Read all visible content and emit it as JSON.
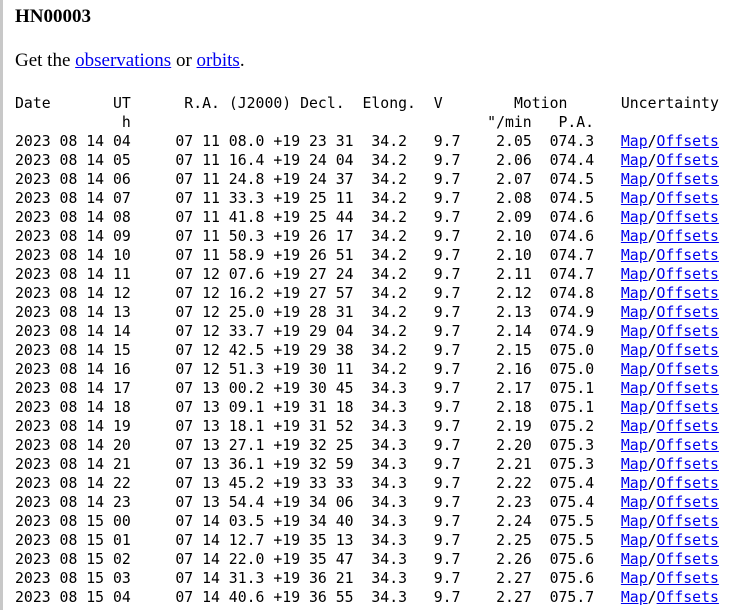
{
  "title": "HN00003",
  "intro": {
    "prefix": "Get the ",
    "link1": "observations",
    "middle": " or ",
    "link2": "orbits",
    "suffix": "."
  },
  "table": {
    "headers1": {
      "date": "Date",
      "ut": "UT",
      "radec": "R.A. (J2000) Decl.",
      "elong": "Elong.",
      "v": "V",
      "motion": "Motion",
      "uncertainty": "Uncertainty"
    },
    "headers2": {
      "ut_unit": "h",
      "rate": "\"/min",
      "pa": "P.A."
    },
    "link_map": "Map",
    "link_sep": "/",
    "link_offsets": "Offsets",
    "rows": [
      [
        "2023 08 14 04",
        "07 11 08.0",
        "+19 23 31",
        "34.2",
        "9.7",
        "2.05",
        "074.3"
      ],
      [
        "2023 08 14 05",
        "07 11 16.4",
        "+19 24 04",
        "34.2",
        "9.7",
        "2.06",
        "074.4"
      ],
      [
        "2023 08 14 06",
        "07 11 24.8",
        "+19 24 37",
        "34.2",
        "9.7",
        "2.07",
        "074.5"
      ],
      [
        "2023 08 14 07",
        "07 11 33.3",
        "+19 25 11",
        "34.2",
        "9.7",
        "2.08",
        "074.5"
      ],
      [
        "2023 08 14 08",
        "07 11 41.8",
        "+19 25 44",
        "34.2",
        "9.7",
        "2.09",
        "074.6"
      ],
      [
        "2023 08 14 09",
        "07 11 50.3",
        "+19 26 17",
        "34.2",
        "9.7",
        "2.10",
        "074.6"
      ],
      [
        "2023 08 14 10",
        "07 11 58.9",
        "+19 26 51",
        "34.2",
        "9.7",
        "2.10",
        "074.7"
      ],
      [
        "2023 08 14 11",
        "07 12 07.6",
        "+19 27 24",
        "34.2",
        "9.7",
        "2.11",
        "074.7"
      ],
      [
        "2023 08 14 12",
        "07 12 16.2",
        "+19 27 57",
        "34.2",
        "9.7",
        "2.12",
        "074.8"
      ],
      [
        "2023 08 14 13",
        "07 12 25.0",
        "+19 28 31",
        "34.2",
        "9.7",
        "2.13",
        "074.9"
      ],
      [
        "2023 08 14 14",
        "07 12 33.7",
        "+19 29 04",
        "34.2",
        "9.7",
        "2.14",
        "074.9"
      ],
      [
        "2023 08 14 15",
        "07 12 42.5",
        "+19 29 38",
        "34.2",
        "9.7",
        "2.15",
        "075.0"
      ],
      [
        "2023 08 14 16",
        "07 12 51.3",
        "+19 30 11",
        "34.2",
        "9.7",
        "2.16",
        "075.0"
      ],
      [
        "2023 08 14 17",
        "07 13 00.2",
        "+19 30 45",
        "34.3",
        "9.7",
        "2.17",
        "075.1"
      ],
      [
        "2023 08 14 18",
        "07 13 09.1",
        "+19 31 18",
        "34.3",
        "9.7",
        "2.18",
        "075.1"
      ],
      [
        "2023 08 14 19",
        "07 13 18.1",
        "+19 31 52",
        "34.3",
        "9.7",
        "2.19",
        "075.2"
      ],
      [
        "2023 08 14 20",
        "07 13 27.1",
        "+19 32 25",
        "34.3",
        "9.7",
        "2.20",
        "075.3"
      ],
      [
        "2023 08 14 21",
        "07 13 36.1",
        "+19 32 59",
        "34.3",
        "9.7",
        "2.21",
        "075.3"
      ],
      [
        "2023 08 14 22",
        "07 13 45.2",
        "+19 33 33",
        "34.3",
        "9.7",
        "2.22",
        "075.4"
      ],
      [
        "2023 08 14 23",
        "07 13 54.4",
        "+19 34 06",
        "34.3",
        "9.7",
        "2.23",
        "075.4"
      ],
      [
        "2023 08 15 00",
        "07 14 03.5",
        "+19 34 40",
        "34.3",
        "9.7",
        "2.24",
        "075.5"
      ],
      [
        "2023 08 15 01",
        "07 14 12.7",
        "+19 35 13",
        "34.3",
        "9.7",
        "2.25",
        "075.5"
      ],
      [
        "2023 08 15 02",
        "07 14 22.0",
        "+19 35 47",
        "34.3",
        "9.7",
        "2.26",
        "075.6"
      ],
      [
        "2023 08 15 03",
        "07 14 31.3",
        "+19 36 21",
        "34.3",
        "9.7",
        "2.27",
        "075.6"
      ],
      [
        "2023 08 15 04",
        "07 14 40.6",
        "+19 36 55",
        "34.3",
        "9.7",
        "2.27",
        "075.7"
      ]
    ]
  }
}
